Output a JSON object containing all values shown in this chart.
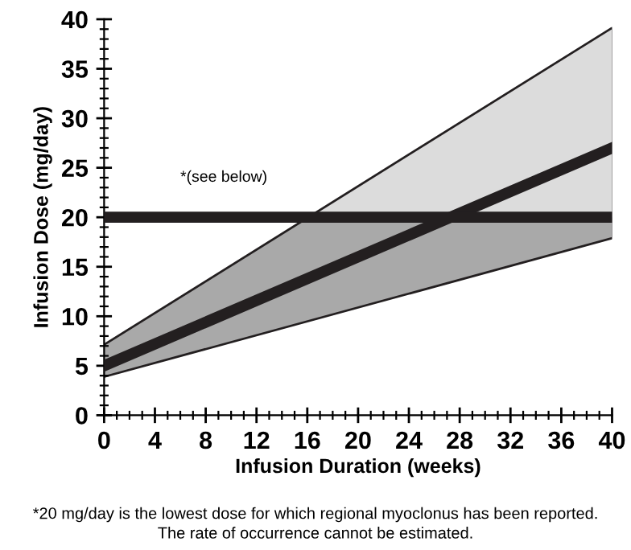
{
  "chart_data": {
    "type": "line",
    "xlabel": "Infusion Duration (weeks)",
    "ylabel": "Infusion Dose (mg/day)",
    "x": [
      0,
      40
    ],
    "series": [
      {
        "color": "#231f20",
        "values": [
          5,
          27
        ],
        "lower": [
          4,
          18
        ],
        "upper": [
          7,
          39
        ]
      }
    ],
    "xlim": [
      0,
      40
    ],
    "ylim": [
      0,
      40
    ],
    "xticks": [
      0,
      4,
      8,
      12,
      16,
      20,
      24,
      28,
      32,
      36,
      40
    ],
    "yticks": [
      0,
      5,
      10,
      15,
      20,
      25,
      30,
      35,
      40
    ],
    "ref_lines": [
      {
        "axis": "y",
        "value": 20,
        "color": "#231f20"
      }
    ],
    "bands": [
      {
        "axis": "y",
        "from": 20,
        "to": 40,
        "color": "#dcdcdc"
      },
      {
        "axis": "y",
        "from": 0,
        "to": 20,
        "color": "#a9a9a9"
      }
    ],
    "annotations": [
      "*(see below)",
      "*20 mg/day is the lowest dose for which regional myoclonus has been reported.\nThe rate of occurrence cannot be estimated."
    ],
    "grid": false,
    "legend": false,
    "marker": "none",
    "line_style": "solid"
  }
}
